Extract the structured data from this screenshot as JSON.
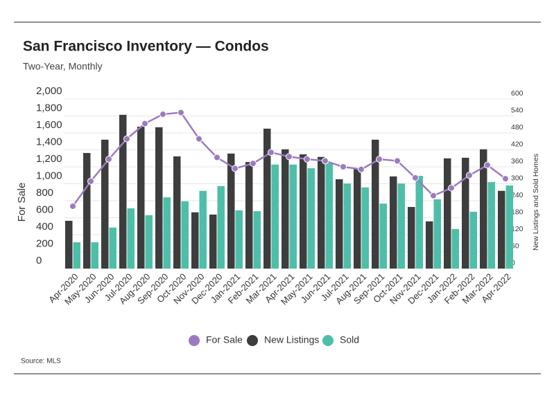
{
  "chart_data": {
    "type": "bar",
    "title": "San Francisco Inventory — Condos",
    "subtitle": "Two-Year, Monthly",
    "y_label": "For Sale",
    "y2_label": "New Listings and Sold Homes",
    "source": "Source: MLS",
    "categories": [
      "Apr-2020",
      "May-2020",
      "Jun-2020",
      "Jul-2020",
      "Aug-2020",
      "Sep-2020",
      "Oct-2020",
      "Nov-2020",
      "Dec-2020",
      "Jan-2021",
      "Feb-2021",
      "Mar-2021",
      "Apr-2021",
      "May-2021",
      "Jun-2021",
      "Jul-2021",
      "Aug-2021",
      "Sep-2021",
      "Oct-2021",
      "Nov-2021",
      "Dec-2021",
      "Jan-2022",
      "Feb-2022",
      "Mar-2022",
      "Apr-2022"
    ],
    "series": [
      {
        "name": "For Sale",
        "type": "line",
        "axis": "y",
        "color": "#9b7bc0",
        "values": [
          735,
          1030,
          1290,
          1530,
          1710,
          1820,
          1840,
          1530,
          1310,
          1180,
          1240,
          1370,
          1320,
          1290,
          1270,
          1200,
          1170,
          1290,
          1270,
          1070,
          860,
          950,
          1100,
          1220,
          1060
        ]
      },
      {
        "name": "New Listings",
        "type": "bar",
        "axis": "y2",
        "color": "#3d3d3d",
        "values": [
          169,
          409,
          456,
          544,
          502,
          500,
          397,
          199,
          191,
          407,
          377,
          495,
          422,
          404,
          395,
          316,
          353,
          456,
          326,
          218,
          167,
          390,
          392,
          422,
          275
        ]
      },
      {
        "name": "Sold",
        "type": "bar",
        "axis": "y2",
        "color": "#4dbfa8",
        "values": [
          93,
          93,
          145,
          213,
          189,
          252,
          238,
          275,
          292,
          206,
          203,
          368,
          368,
          355,
          373,
          301,
          287,
          230,
          301,
          328,
          245,
          140,
          201,
          306,
          294
        ]
      }
    ],
    "ylim": [
      0,
      2000
    ],
    "yticks": [
      0,
      200,
      400,
      600,
      800,
      {
        "value": 1000,
        "label": "1,000"
      },
      {
        "value": 1200,
        "label": "1,200"
      },
      {
        "value": 1400,
        "label": "1,400"
      },
      {
        "value": 1600,
        "label": "1,600"
      },
      {
        "value": 1800,
        "label": "1,800"
      },
      {
        "value": 2000,
        "label": "2,000"
      }
    ],
    "y2lim": [
      0,
      600
    ],
    "y2ticks": [
      0,
      60,
      120,
      180,
      240,
      300,
      360,
      420,
      480,
      540,
      600
    ],
    "grid": true
  }
}
